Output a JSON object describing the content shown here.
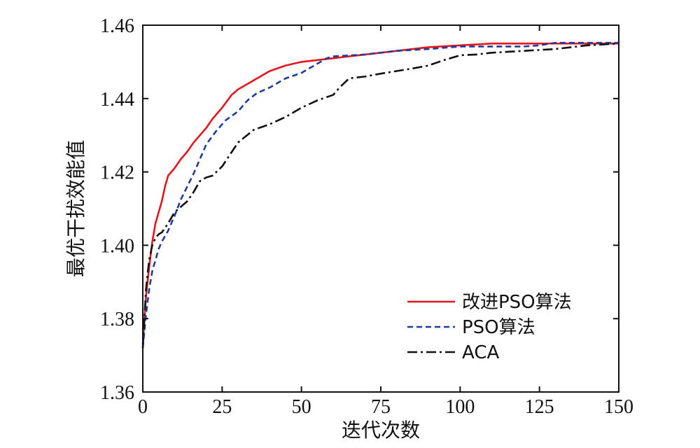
{
  "chart_data": {
    "type": "line",
    "xlabel": "迭代次数",
    "ylabel": "最优干扰效能值",
    "xlim": [
      0,
      150
    ],
    "ylim": [
      1.36,
      1.46
    ],
    "xticks": [
      0,
      25,
      50,
      75,
      100,
      125,
      150
    ],
    "yticks": [
      1.36,
      1.38,
      1.4,
      1.42,
      1.44,
      1.46
    ],
    "ytick_labels": [
      "1.36",
      "1.38",
      "1.40",
      "1.42",
      "1.44",
      "1.46"
    ],
    "grid": false,
    "legend_position": "lower-right",
    "series": [
      {
        "name": "改进PSO算法",
        "color": "#e8141c",
        "dash": "solid",
        "x": [
          0,
          1,
          2,
          3,
          4,
          5,
          6,
          7,
          8,
          9,
          10,
          12,
          14,
          16,
          18,
          20,
          22,
          25,
          28,
          30,
          35,
          40,
          45,
          50,
          55,
          60,
          70,
          80,
          90,
          100,
          110,
          120,
          130,
          140,
          150
        ],
        "y": [
          1.373,
          1.386,
          1.394,
          1.401,
          1.406,
          1.409,
          1.412,
          1.416,
          1.419,
          1.42,
          1.421,
          1.4235,
          1.4255,
          1.428,
          1.43,
          1.432,
          1.4345,
          1.4375,
          1.441,
          1.4425,
          1.445,
          1.4475,
          1.449,
          1.45,
          1.4505,
          1.451,
          1.452,
          1.453,
          1.454,
          1.4545,
          1.455,
          1.455,
          1.455,
          1.455,
          1.455
        ]
      },
      {
        "name": "PSO算法",
        "color": "#1f3c9c",
        "dash": "dashed",
        "x": [
          0,
          1,
          2,
          3,
          4,
          5,
          6,
          8,
          10,
          12,
          14,
          16,
          18,
          20,
          23,
          26,
          30,
          33,
          36,
          40,
          45,
          50,
          55,
          58,
          60,
          70,
          80,
          90,
          100,
          110,
          120,
          125,
          130,
          140,
          150
        ],
        "y": [
          1.372,
          1.381,
          1.388,
          1.393,
          1.396,
          1.399,
          1.401,
          1.404,
          1.408,
          1.4125,
          1.416,
          1.4195,
          1.4235,
          1.4275,
          1.431,
          1.434,
          1.4365,
          1.4395,
          1.4415,
          1.443,
          1.4455,
          1.447,
          1.4495,
          1.451,
          1.4515,
          1.452,
          1.453,
          1.4535,
          1.4542,
          1.4542,
          1.4542,
          1.4545,
          1.4552,
          1.4552,
          1.4552
        ]
      },
      {
        "name": "ACA",
        "color": "#111111",
        "dash": "dashdot",
        "x": [
          0,
          1,
          2,
          3,
          4,
          5,
          6,
          8,
          10,
          12,
          14,
          16,
          18,
          20,
          22,
          25,
          30,
          35,
          40,
          45,
          50,
          55,
          60,
          62,
          65,
          70,
          75,
          80,
          85,
          90,
          95,
          100,
          105,
          110,
          120,
          130,
          140,
          150
        ],
        "y": [
          1.372,
          1.388,
          1.396,
          1.4,
          1.402,
          1.403,
          1.4035,
          1.406,
          1.409,
          1.4105,
          1.412,
          1.4145,
          1.4175,
          1.4185,
          1.419,
          1.4215,
          1.428,
          1.4315,
          1.433,
          1.435,
          1.4375,
          1.4395,
          1.441,
          1.443,
          1.4455,
          1.446,
          1.4468,
          1.4475,
          1.4482,
          1.449,
          1.4505,
          1.4518,
          1.452,
          1.4525,
          1.453,
          1.4535,
          1.4545,
          1.455
        ]
      }
    ]
  }
}
